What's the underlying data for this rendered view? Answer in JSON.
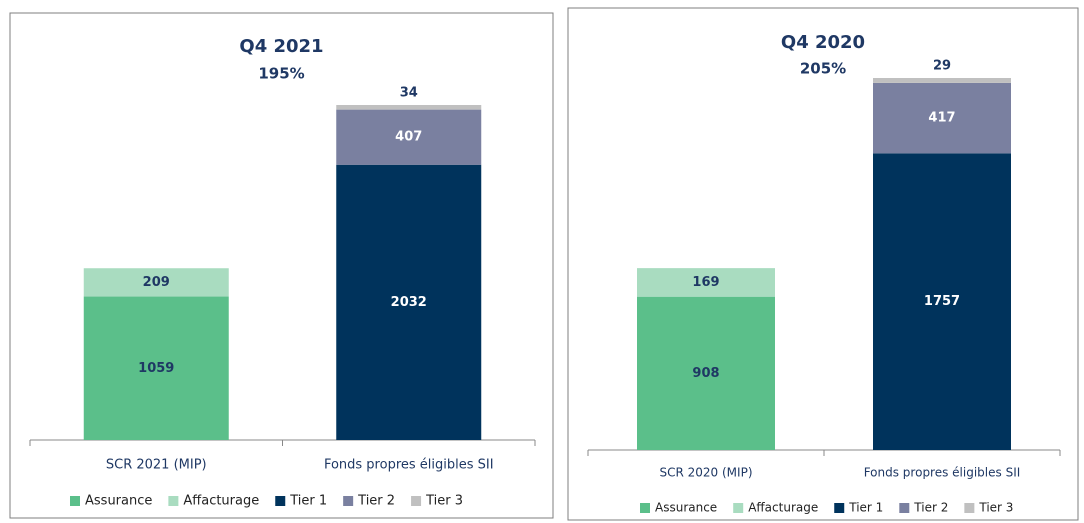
{
  "chart_data": [
    {
      "type": "stacked_bar",
      "title": "Q4 2021",
      "subtitle": "195%",
      "categories": [
        "SCR 2021 (MIP)",
        "Fonds propres éligibles SII"
      ],
      "series": [
        {
          "name": "Assurance",
          "color": "#5bbf8a",
          "values": [
            1059,
            null
          ]
        },
        {
          "name": "Affacturage",
          "color": "#a9dcc0",
          "values": [
            209,
            null
          ]
        },
        {
          "name": "Tier 1",
          "color": "#00335c",
          "values": [
            null,
            2032
          ]
        },
        {
          "name": "Tier 2",
          "color": "#7a80a0",
          "values": [
            null,
            407
          ]
        },
        {
          "name": "Tier 3",
          "color": "#c0c0c0",
          "values": [
            null,
            34
          ]
        }
      ]
    },
    {
      "type": "stacked_bar",
      "title": "Q4 2020",
      "subtitle": "205%",
      "categories": [
        "SCR 2020 (MIP)",
        "Fonds propres éligibles SII"
      ],
      "series": [
        {
          "name": "Assurance",
          "color": "#5bbf8a",
          "values": [
            908,
            null
          ]
        },
        {
          "name": "Affacturage",
          "color": "#a9dcc0",
          "values": [
            169,
            null
          ]
        },
        {
          "name": "Tier 1",
          "color": "#00335c",
          "values": [
            null,
            1757
          ]
        },
        {
          "name": "Tier 2",
          "color": "#7a80a0",
          "values": [
            null,
            417
          ]
        },
        {
          "name": "Tier 3",
          "color": "#c0c0c0",
          "values": [
            null,
            29
          ]
        }
      ]
    }
  ]
}
